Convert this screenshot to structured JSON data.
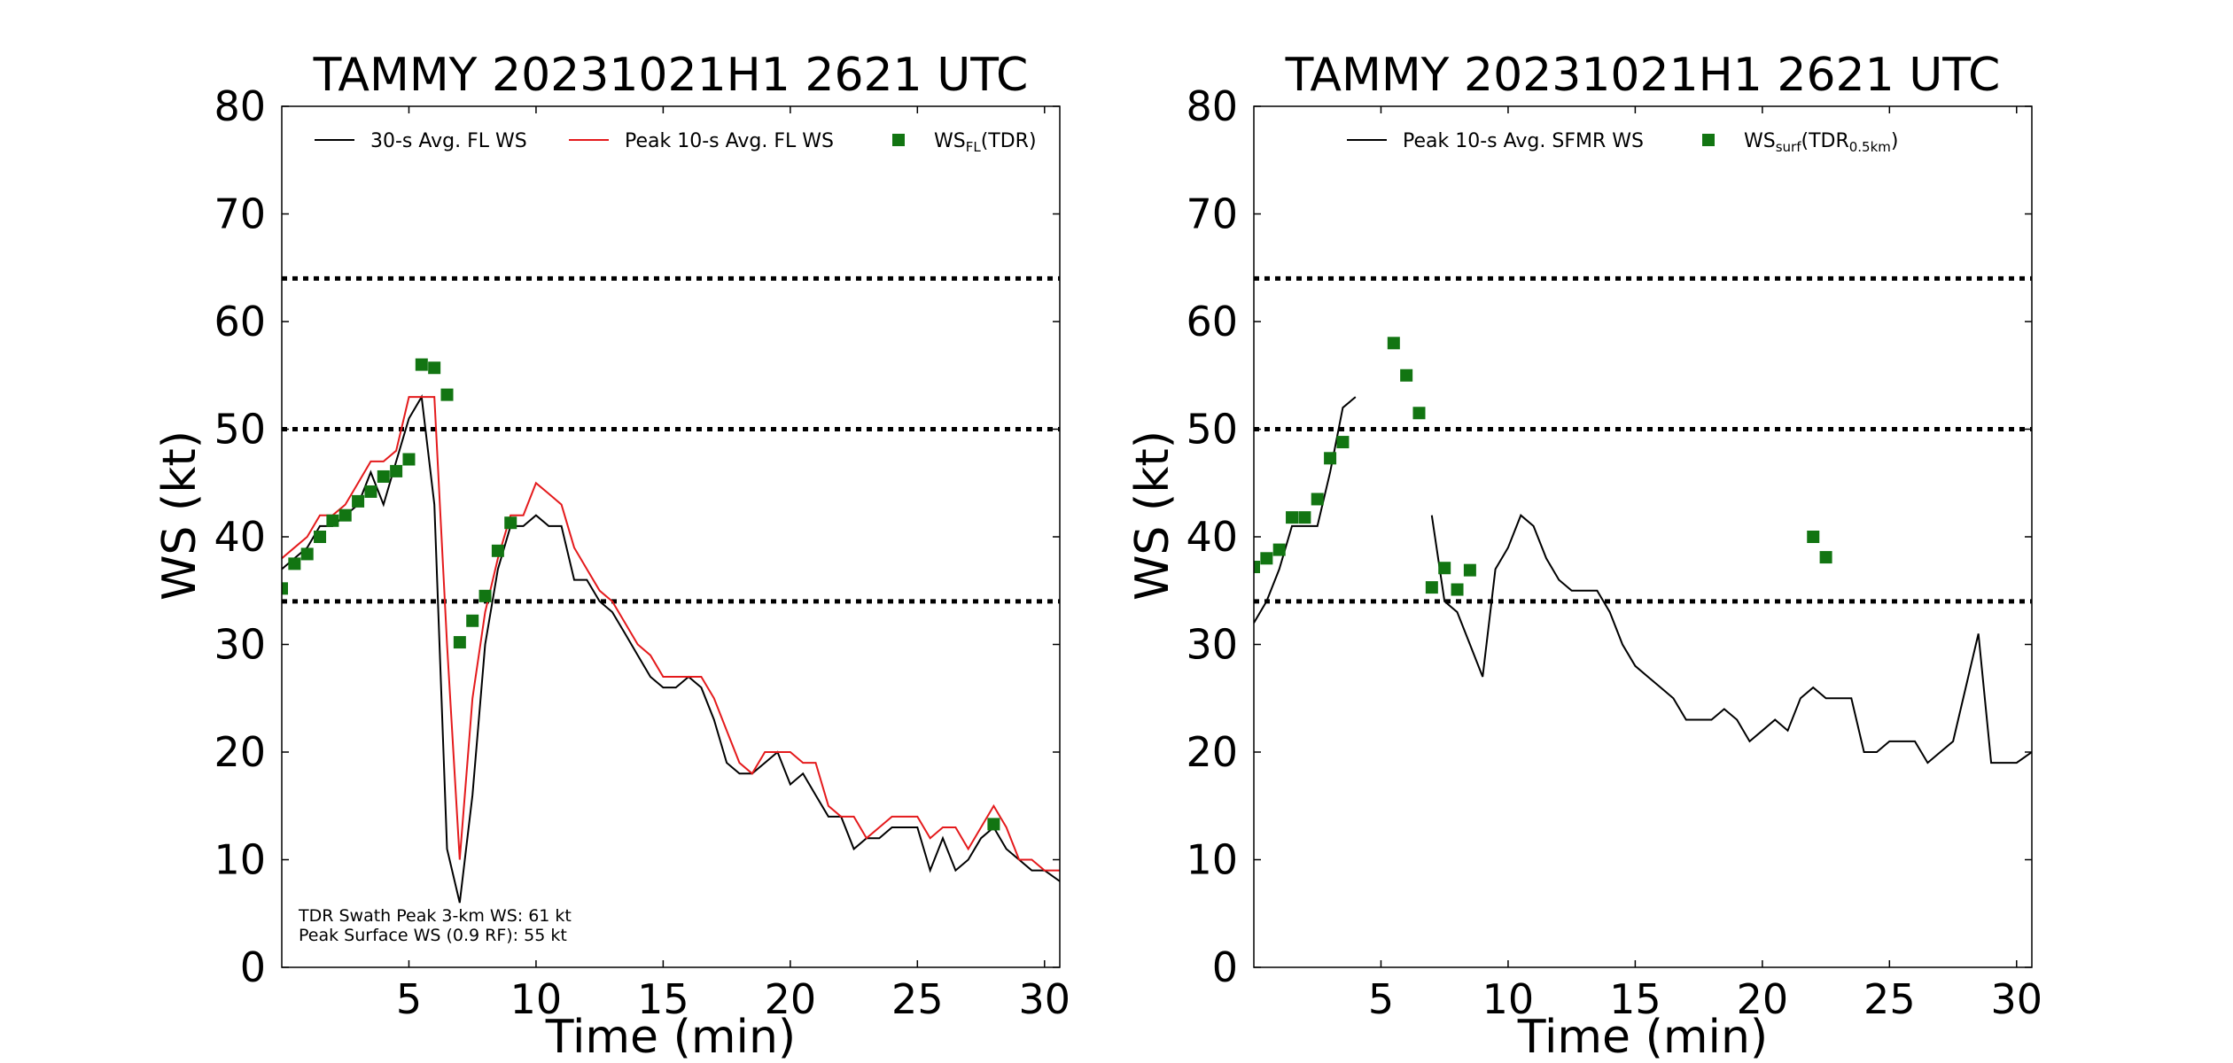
{
  "figure": {
    "background": "#ffffff"
  },
  "chart_data": [
    {
      "type": "line",
      "title": "TAMMY 20231021H1 2621 UTC",
      "xlabel": "Time (min)",
      "ylabel": "WS (kt)",
      "xlim": [
        0,
        30.6
      ],
      "ylim": [
        0,
        80
      ],
      "xticks": [
        5,
        10,
        15,
        20,
        25,
        30
      ],
      "yticks": [
        0,
        10,
        20,
        30,
        40,
        50,
        60,
        70,
        80
      ],
      "xtick_labels": [
        "5",
        "10",
        "15",
        "20",
        "25",
        "30"
      ],
      "ytick_labels": [
        "0",
        "10",
        "20",
        "30",
        "40",
        "50",
        "60",
        "70",
        "80"
      ],
      "grid": false,
      "legend_position": "top",
      "reference_lines": [
        {
          "y": 34,
          "style": "dotted",
          "color": "#000000"
        },
        {
          "y": 50,
          "style": "dotted",
          "color": "#000000"
        },
        {
          "y": 64,
          "style": "dotted",
          "color": "#000000"
        }
      ],
      "legend": [
        {
          "label": "30-s Avg. FL WS",
          "kind": "line",
          "color": "#000000"
        },
        {
          "label": "Peak 10-s Avg. FL WS",
          "kind": "line",
          "color": "#e41a1c"
        },
        {
          "label_main": "WS",
          "label_sub": "FL",
          "label_rest": "(TDR)",
          "kind": "marker",
          "color": "#127512"
        }
      ],
      "annotations": [
        "TDR Swath Peak 3-km WS: 61 kt",
        "Peak Surface WS (0.9 RF): 55 kt"
      ],
      "series": [
        {
          "name": "30-s Avg. FL WS",
          "kind": "line",
          "color": "#000000",
          "points": [
            [
              0,
              37
            ],
            [
              0.5,
              38
            ],
            [
              1,
              39
            ],
            [
              1.5,
              41
            ],
            [
              2,
              41
            ],
            [
              2.5,
              42
            ],
            [
              3,
              43
            ],
            [
              3.5,
              46
            ],
            [
              4,
              43
            ],
            [
              4.5,
              47
            ],
            [
              5,
              51
            ],
            [
              5.5,
              53
            ],
            [
              6,
              43
            ],
            [
              6.5,
              11
            ],
            [
              7,
              6
            ],
            [
              7.5,
              16
            ],
            [
              8,
              30
            ],
            [
              8.5,
              37
            ],
            [
              9,
              41
            ],
            [
              9.5,
              41
            ],
            [
              10,
              42
            ],
            [
              10.5,
              41
            ],
            [
              11,
              41
            ],
            [
              11.5,
              36
            ],
            [
              12,
              36
            ],
            [
              12.5,
              34
            ],
            [
              13,
              33
            ],
            [
              13.5,
              31
            ],
            [
              14,
              29
            ],
            [
              14.5,
              27
            ],
            [
              15,
              26
            ],
            [
              15.5,
              26
            ],
            [
              16,
              27
            ],
            [
              16.5,
              26
            ],
            [
              17,
              23
            ],
            [
              17.5,
              19
            ],
            [
              18,
              18
            ],
            [
              18.5,
              18
            ],
            [
              19,
              19
            ],
            [
              19.5,
              20
            ],
            [
              20,
              17
            ],
            [
              20.5,
              18
            ],
            [
              21,
              16
            ],
            [
              21.5,
              14
            ],
            [
              22,
              14
            ],
            [
              22.5,
              11
            ],
            [
              23,
              12
            ],
            [
              23.5,
              12
            ],
            [
              24,
              13
            ],
            [
              24.5,
              13
            ],
            [
              25,
              13
            ],
            [
              25.5,
              9
            ],
            [
              26,
              12
            ],
            [
              26.5,
              9
            ],
            [
              27,
              10
            ],
            [
              27.5,
              12
            ],
            [
              28,
              13
            ],
            [
              28.5,
              11
            ],
            [
              29,
              10
            ],
            [
              29.5,
              9
            ],
            [
              30,
              9
            ],
            [
              30.6,
              8
            ]
          ]
        },
        {
          "name": "Peak 10-s Avg. FL WS",
          "kind": "line",
          "color": "#e41a1c",
          "points": [
            [
              0,
              38
            ],
            [
              0.5,
              39
            ],
            [
              1,
              40
            ],
            [
              1.5,
              42
            ],
            [
              2,
              42
            ],
            [
              2.5,
              43
            ],
            [
              3,
              45
            ],
            [
              3.5,
              47
            ],
            [
              4,
              47
            ],
            [
              4.5,
              48
            ],
            [
              5,
              53
            ],
            [
              5.5,
              53
            ],
            [
              6,
              53
            ],
            [
              6.5,
              30
            ],
            [
              7,
              10
            ],
            [
              7.5,
              25
            ],
            [
              8,
              33
            ],
            [
              8.5,
              38
            ],
            [
              9,
              42
            ],
            [
              9.5,
              42
            ],
            [
              10,
              45
            ],
            [
              10.5,
              44
            ],
            [
              11,
              43
            ],
            [
              11.5,
              39
            ],
            [
              12,
              37
            ],
            [
              12.5,
              35
            ],
            [
              13,
              34
            ],
            [
              13.5,
              32
            ],
            [
              14,
              30
            ],
            [
              14.5,
              29
            ],
            [
              15,
              27
            ],
            [
              15.5,
              27
            ],
            [
              16,
              27
            ],
            [
              16.5,
              27
            ],
            [
              17,
              25
            ],
            [
              17.5,
              22
            ],
            [
              18,
              19
            ],
            [
              18.5,
              18
            ],
            [
              19,
              20
            ],
            [
              19.5,
              20
            ],
            [
              20,
              20
            ],
            [
              20.5,
              19
            ],
            [
              21,
              19
            ],
            [
              21.5,
              15
            ],
            [
              22,
              14
            ],
            [
              22.5,
              14
            ],
            [
              23,
              12
            ],
            [
              23.5,
              13
            ],
            [
              24,
              14
            ],
            [
              24.5,
              14
            ],
            [
              25,
              14
            ],
            [
              25.5,
              12
            ],
            [
              26,
              13
            ],
            [
              26.5,
              13
            ],
            [
              27,
              11
            ],
            [
              27.5,
              13
            ],
            [
              28,
              15
            ],
            [
              28.5,
              13
            ],
            [
              29,
              10
            ],
            [
              29.5,
              10
            ],
            [
              30,
              9
            ],
            [
              30.6,
              9
            ]
          ]
        },
        {
          "name": "WS FL (TDR)",
          "kind": "marker",
          "color": "#127512",
          "points": [
            [
              0,
              35.2
            ],
            [
              0.5,
              37.5
            ],
            [
              1,
              38.4
            ],
            [
              1.5,
              40
            ],
            [
              2,
              41.5
            ],
            [
              2.5,
              42
            ],
            [
              3,
              43.3
            ],
            [
              3.5,
              44.2
            ],
            [
              4,
              45.6
            ],
            [
              4.5,
              46.1
            ],
            [
              5,
              47.2
            ],
            [
              5.5,
              56
            ],
            [
              6,
              55.7
            ],
            [
              6.5,
              53.2
            ],
            [
              7,
              30.2
            ],
            [
              7.5,
              32.2
            ],
            [
              8,
              34.5
            ],
            [
              8.5,
              38.7
            ],
            [
              9,
              41.3
            ],
            [
              28,
              13.3
            ]
          ]
        }
      ]
    },
    {
      "type": "line",
      "title": "TAMMY 20231021H1 2621 UTC",
      "xlabel": "Time (min)",
      "ylabel": "WS (kt)",
      "xlim": [
        0,
        30.6
      ],
      "ylim": [
        0,
        80
      ],
      "xticks": [
        5,
        10,
        15,
        20,
        25,
        30
      ],
      "yticks": [
        0,
        10,
        20,
        30,
        40,
        50,
        60,
        70,
        80
      ],
      "xtick_labels": [
        "5",
        "10",
        "15",
        "20",
        "25",
        "30"
      ],
      "ytick_labels": [
        "0",
        "10",
        "20",
        "30",
        "40",
        "50",
        "60",
        "70",
        "80"
      ],
      "grid": false,
      "legend_position": "top",
      "reference_lines": [
        {
          "y": 34,
          "style": "dotted",
          "color": "#000000"
        },
        {
          "y": 50,
          "style": "dotted",
          "color": "#000000"
        },
        {
          "y": 64,
          "style": "dotted",
          "color": "#000000"
        }
      ],
      "legend": [
        {
          "label": "Peak 10-s Avg. SFMR WS",
          "kind": "line",
          "color": "#000000"
        },
        {
          "label_main": "WS",
          "label_sub": "surf",
          "label_rest": "(TDR",
          "label_sub2": "0.5km",
          "label_end": ")",
          "kind": "marker",
          "color": "#127512"
        }
      ],
      "annotations": [],
      "series": [
        {
          "name": "Peak 10-s Avg. SFMR WS segment 1",
          "kind": "line",
          "color": "#000000",
          "points": [
            [
              0,
              32
            ],
            [
              0.5,
              34
            ],
            [
              1,
              37
            ],
            [
              1.5,
              41
            ],
            [
              2,
              41
            ],
            [
              2.5,
              41
            ],
            [
              3,
              46
            ],
            [
              3.5,
              52
            ],
            [
              4,
              53
            ]
          ]
        },
        {
          "name": "Peak 10-s Avg. SFMR WS segment 2",
          "kind": "line",
          "color": "#000000",
          "points": [
            [
              7,
              42
            ],
            [
              7.5,
              34
            ],
            [
              8,
              33
            ],
            [
              8.5,
              30
            ],
            [
              9,
              27
            ],
            [
              9.5,
              37
            ],
            [
              10,
              39
            ],
            [
              10.5,
              42
            ],
            [
              11,
              41
            ],
            [
              11.5,
              38
            ],
            [
              12,
              36
            ],
            [
              12.5,
              35
            ],
            [
              13,
              35
            ],
            [
              13.5,
              35
            ],
            [
              14,
              33
            ],
            [
              14.5,
              30
            ],
            [
              15,
              28
            ],
            [
              15.5,
              27
            ],
            [
              16,
              26
            ],
            [
              16.5,
              25
            ],
            [
              17,
              23
            ],
            [
              17.5,
              23
            ],
            [
              18,
              23
            ],
            [
              18.5,
              24
            ],
            [
              19,
              23
            ],
            [
              19.5,
              21
            ],
            [
              20,
              22
            ],
            [
              20.5,
              23
            ],
            [
              21,
              22
            ],
            [
              21.5,
              25
            ],
            [
              22,
              26
            ],
            [
              22.5,
              25
            ],
            [
              23,
              25
            ],
            [
              23.5,
              25
            ],
            [
              24,
              20
            ],
            [
              24.5,
              20
            ],
            [
              25,
              21
            ],
            [
              25.5,
              21
            ],
            [
              26,
              21
            ],
            [
              26.5,
              19
            ],
            [
              27,
              20
            ],
            [
              27.5,
              21
            ],
            [
              28,
              26
            ],
            [
              28.5,
              31
            ],
            [
              29,
              19
            ],
            [
              29.5,
              19
            ],
            [
              30,
              19
            ],
            [
              30.6,
              20
            ]
          ]
        },
        {
          "name": "WS surf (TDR 0.5km)",
          "kind": "marker",
          "color": "#127512",
          "points": [
            [
              0,
              37.2
            ],
            [
              0.5,
              38
            ],
            [
              1,
              38.8
            ],
            [
              1.5,
              41.8
            ],
            [
              2,
              41.8
            ],
            [
              2.5,
              43.5
            ],
            [
              3,
              47.3
            ],
            [
              3.5,
              48.8
            ],
            [
              5.5,
              58
            ],
            [
              6,
              55
            ],
            [
              6.5,
              51.5
            ],
            [
              7,
              35.3
            ],
            [
              7.5,
              37.1
            ],
            [
              8,
              35.1
            ],
            [
              8.5,
              36.9
            ],
            [
              22,
              40
            ],
            [
              22.5,
              38.1
            ]
          ]
        }
      ]
    }
  ]
}
